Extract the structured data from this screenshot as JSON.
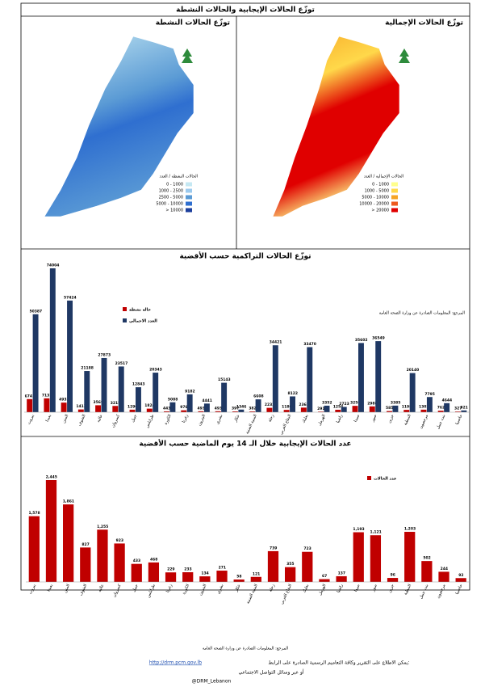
{
  "header": {
    "title": "توزّع الحالات الإيجابية والحالات النشطة"
  },
  "maps": [
    {
      "title": "توزّع الحالات النشطة",
      "legend_title": "الحالات النشطة / العدد",
      "legend": [
        "0 - 1000",
        "1000 - 2500",
        "2500 - 5000",
        "5000 - 10000",
        "> 10000"
      ],
      "colors": [
        "#c5e8f3",
        "#9ccaee",
        "#5b9bd5",
        "#2f6fd0",
        "#1c3f9c"
      ]
    },
    {
      "title": "توزّع الحالات الإجمالية",
      "legend_title": "الحالات الإجمالية / العدد",
      "legend": [
        "0 - 1000",
        "1000 - 5000",
        "5000 - 10000",
        "10000 - 20000",
        "> 20000"
      ],
      "colors": [
        "#ffff8c",
        "#ffd84a",
        "#f6a424",
        "#ee5a1e",
        "#e00000"
      ]
    }
  ],
  "chart_data": [
    {
      "type": "bar",
      "title": "توزّع الحالات التراكمية حسب الأقضية",
      "note": "المرجع: المعلومات الصادرة عن وزارة الصحة العامة",
      "categories": [
        "بيروت",
        "بعبدا",
        "المتن",
        "الشوف",
        "عاليه",
        "كسروان",
        "جبيل",
        "طرابلس",
        "الكورة",
        "زغرتا",
        "البترون",
        "بشري",
        "عكار",
        "المنية الضنية",
        "زحلة",
        "البقاع الغربي",
        "بعلبك",
        "الهرمل",
        "راشيا",
        "صيدا",
        "صور",
        "جزين",
        "النبطية",
        "مرجعيون",
        "بنت جبيل",
        "حاصبيا"
      ],
      "series": [
        {
          "name": "حالة نشطة",
          "color": "#c00000",
          "values": [
            6741,
            7131,
            4932,
            1413,
            3569,
            3215,
            1290,
            1824,
            443,
            976,
            493,
            493,
            397,
            382,
            2232,
            1180,
            2361,
            291,
            1254,
            3258,
            2988,
            585,
            1198,
            1302,
            762,
            327
          ]
        },
        {
          "name": "العدد الاجمالي",
          "color": "#1f3864",
          "values": [
            50387,
            74004,
            57424,
            21188,
            27873,
            23517,
            12843,
            20343,
            5088,
            9182,
            4441,
            15143,
            1346,
            6608,
            34421,
            8122,
            33470,
            3352,
            2723,
            35602,
            36549,
            3385,
            20140,
            7795,
            4644,
            921
          ]
        }
      ]
    },
    {
      "type": "bar",
      "title": "عدد الحالات الإيجابية خلال الـ 14 يوم الماضية حسب الأقضية",
      "categories": [
        "بيروت",
        "بعبدا",
        "المتن",
        "الشوف",
        "عاليه",
        "كسروان",
        "جبيل",
        "طرابلس",
        "زغرتا",
        "الكورة",
        "البترون",
        "بشري",
        "عكار",
        "المنية الضنية",
        "زحلة",
        "البقاع الغربي",
        "بعلبك",
        "الهرمل",
        "راشيا",
        "صيدا",
        "صور",
        "جزين",
        "النبطية",
        "بنت جبيل",
        "مرجعيون",
        "حاصبيا"
      ],
      "series": [
        {
          "name": "عدد الحالات",
          "color": "#c00000",
          "values": [
            1578,
            2445,
            1861,
            827,
            1255,
            923,
            433,
            468,
            229,
            233,
            134,
            271,
            58,
            121,
            739,
            355,
            723,
            67,
            137,
            1193,
            1121,
            96,
            1203,
            502,
            244,
            92
          ],
          "value_labels": [
            "1,578",
            "2,445",
            "1,861",
            "827",
            "1,255",
            "923",
            "433",
            "468",
            "229",
            "233",
            "134",
            "271",
            "58",
            "121",
            "739",
            "355",
            "723",
            "67",
            "137",
            "1,193",
            "1,121",
            "96",
            "1,203",
            "502",
            "244",
            "92"
          ]
        }
      ]
    }
  ],
  "footer": {
    "source": "المرجع: المعلومات الصادرة عن وزارة الصحة العامة",
    "line1": "يمكن الاطلاع على التقرير وكافة التعاميم الرسمية الصادرة على الرابط:",
    "url": "http://drm.pcm.gov.lb",
    "line2": "أو عبر وسائل التواصل الاجتماعي",
    "handle": "@DRM_Lebanon"
  }
}
